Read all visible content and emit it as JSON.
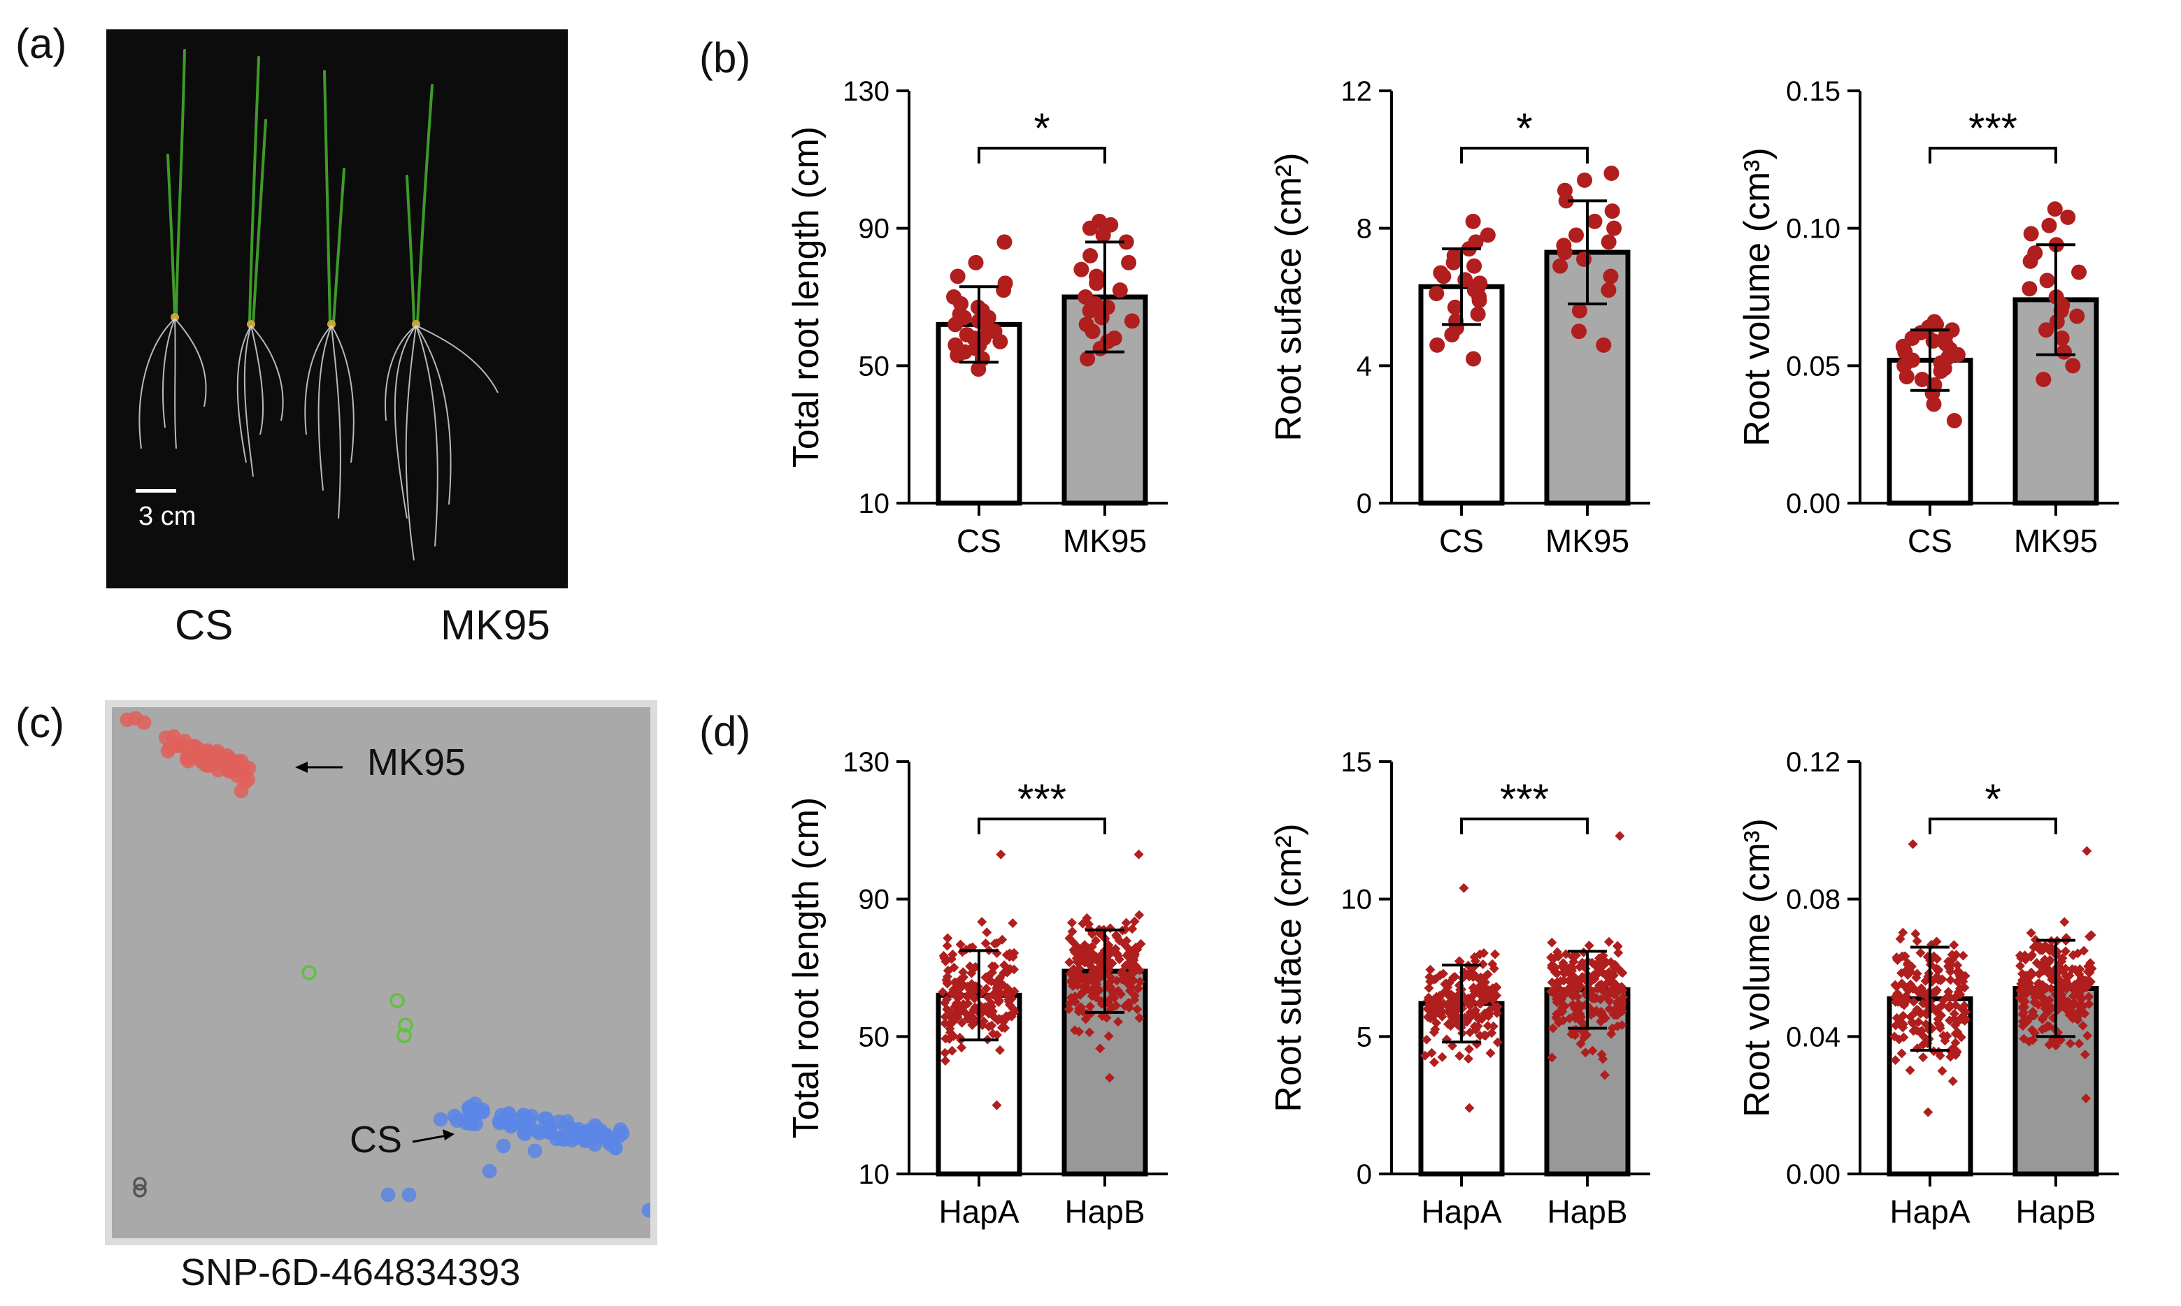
{
  "panel_labels": {
    "a": "(a)",
    "b": "(b)",
    "c": "(c)",
    "d": "(d)"
  },
  "photo": {
    "scale_label": "3 cm",
    "captions": [
      "CS",
      "MK95"
    ]
  },
  "snp_plot": {
    "title": "SNP-6D-464834393",
    "label_mk95": "MK95",
    "label_cs": "CS",
    "colors": {
      "mk95": "#e0605a",
      "cs": "#5a86e6",
      "het": "#5ec23c",
      "missing": "#555555"
    }
  },
  "colors": {
    "bar_b": "#a9a9a9",
    "bar_d": "#989898",
    "dot": "#b01e1e",
    "axis": "#000000"
  },
  "chart_data": [
    {
      "id": "b1",
      "type": "bar",
      "categories": [
        "CS",
        "MK95"
      ],
      "values": [
        62,
        70
      ],
      "error": [
        11,
        16
      ],
      "ylabel": "Total root length (cm)",
      "ylim": [
        10,
        130
      ],
      "ticks": [
        "10",
        "50",
        "90",
        "130"
      ],
      "significance": "*",
      "points": [
        [
          49,
          52,
          53,
          54,
          55,
          56,
          56,
          57,
          58,
          58,
          59,
          60,
          61,
          62,
          63,
          64,
          64,
          65,
          66,
          67,
          68,
          70,
          72,
          74,
          76,
          80,
          86
        ],
        [
          52,
          55,
          57,
          58,
          60,
          62,
          63,
          64,
          66,
          67,
          68,
          70,
          72,
          74,
          76,
          78,
          80,
          82,
          86,
          88,
          90,
          91,
          92
        ]
      ]
    },
    {
      "id": "b2",
      "type": "bar",
      "categories": [
        "CS",
        "MK95"
      ],
      "values": [
        6.3,
        7.3
      ],
      "error": [
        1.1,
        1.5
      ],
      "ylabel": "Root suface (cm²)",
      "ylim": [
        0,
        12
      ],
      "ticks": [
        "0",
        "4",
        "8",
        "12"
      ],
      "significance": "*",
      "points": [
        [
          4.2,
          4.6,
          4.9,
          5.1,
          5.3,
          5.5,
          5.7,
          5.9,
          6.0,
          6.1,
          6.2,
          6.3,
          6.4,
          6.5,
          6.6,
          6.7,
          6.9,
          7.0,
          7.2,
          7.4,
          7.6,
          7.8,
          8.2
        ],
        [
          4.6,
          5.0,
          5.6,
          6.2,
          6.6,
          6.9,
          7.1,
          7.3,
          7.5,
          7.6,
          7.8,
          8.0,
          8.2,
          8.5,
          8.8,
          9.1,
          9.4,
          9.6
        ]
      ]
    },
    {
      "id": "b3",
      "type": "bar",
      "categories": [
        "CS",
        "MK95"
      ],
      "values": [
        0.052,
        0.074
      ],
      "error": [
        0.011,
        0.02
      ],
      "ylabel": "Root volume (cm³)",
      "ylim": [
        0,
        0.15
      ],
      "ticks": [
        "0.00",
        "0.05",
        "0.10",
        "0.15"
      ],
      "significance": "***",
      "points": [
        [
          0.03,
          0.036,
          0.04,
          0.043,
          0.045,
          0.046,
          0.048,
          0.049,
          0.05,
          0.051,
          0.052,
          0.053,
          0.054,
          0.055,
          0.056,
          0.057,
          0.058,
          0.059,
          0.06,
          0.061,
          0.062,
          0.063,
          0.064,
          0.065,
          0.066
        ],
        [
          0.045,
          0.05,
          0.055,
          0.06,
          0.063,
          0.066,
          0.068,
          0.07,
          0.072,
          0.075,
          0.078,
          0.081,
          0.084,
          0.088,
          0.091,
          0.094,
          0.098,
          0.101,
          0.104,
          0.107
        ]
      ]
    },
    {
      "id": "d1",
      "type": "bar",
      "categories": [
        "HapA",
        "HapB"
      ],
      "values": [
        62,
        69
      ],
      "error": [
        13,
        12
      ],
      "ylabel": "Total root length (cm)",
      "ylim": [
        10,
        130
      ],
      "ticks": [
        "10",
        "50",
        "90",
        "130"
      ],
      "significance": "***",
      "dist": {
        "n": [
          190,
          230
        ],
        "min": [
          30,
          38
        ],
        "max": [
          103,
          103
        ]
      }
    },
    {
      "id": "d2",
      "type": "bar",
      "categories": [
        "HapA",
        "HapB"
      ],
      "values": [
        6.2,
        6.7
      ],
      "error": [
        1.4,
        1.4
      ],
      "ylabel": "Root suface (cm²)",
      "ylim": [
        0,
        15
      ],
      "ticks": [
        "0",
        "5",
        "10",
        "15"
      ],
      "significance": "***",
      "dist": {
        "n": [
          190,
          230
        ],
        "min": [
          2.4,
          3.6
        ],
        "max": [
          10.4,
          12.3
        ]
      }
    },
    {
      "id": "d3",
      "type": "bar",
      "categories": [
        "HapA",
        "HapB"
      ],
      "values": [
        0.051,
        0.054
      ],
      "error": [
        0.015,
        0.014
      ],
      "ylabel": "Root volume (cm³)",
      "ylim": [
        0,
        0.12
      ],
      "ticks": [
        "0.00",
        "0.04",
        "0.08",
        "0.12"
      ],
      "significance": "*",
      "dist": {
        "n": [
          190,
          230
        ],
        "min": [
          0.018,
          0.022
        ],
        "max": [
          0.096,
          0.094
        ]
      }
    }
  ]
}
